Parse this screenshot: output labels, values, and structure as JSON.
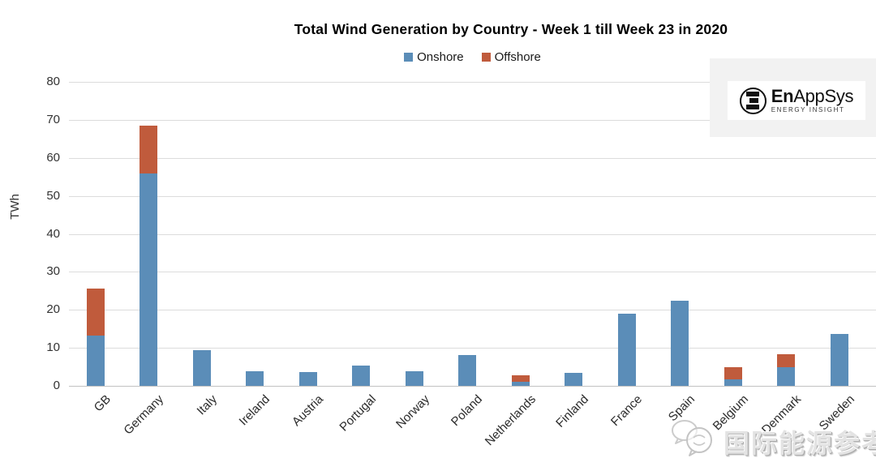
{
  "chart_data": {
    "type": "bar",
    "stacked": true,
    "title": "Total Wind Generation by Country - Week 1 till Week 23 in 2020",
    "ylabel": "TWh",
    "ylim": [
      0,
      80
    ],
    "ytick_interval": 10,
    "grid": true,
    "legend_position": "top",
    "categories": [
      "GB",
      "Germany",
      "Italy",
      "Ireland",
      "Austria",
      "Portugal",
      "Norway",
      "Poland",
      "Netherlands",
      "Finland",
      "France",
      "Spain",
      "Belgium",
      "Denmark",
      "Sweden"
    ],
    "series": [
      {
        "name": "Onshore",
        "color": "#5B8DB8",
        "values": [
          13.2,
          55.8,
          9.3,
          3.8,
          3.7,
          5.3,
          3.9,
          8.2,
          1.1,
          3.4,
          19.0,
          22.3,
          1.7,
          5.0,
          13.6
        ]
      },
      {
        "name": "Offshore",
        "color": "#C05B3C",
        "values": [
          12.5,
          12.7,
          0,
          0,
          0,
          0,
          0,
          0,
          1.6,
          0,
          0,
          0,
          3.3,
          3.4,
          0
        ]
      }
    ]
  },
  "legend": {
    "onshore_label": "Onshore",
    "offshore_label": "Offshore"
  },
  "logo": {
    "brand_bold": "En",
    "brand_rest": "AppSys",
    "tagline": "ENERGY INSIGHT"
  },
  "watermark": {
    "text": "国际能源参考"
  },
  "colors": {
    "onshore": "#5B8DB8",
    "offshore": "#C05B3C",
    "gridline": "#dcdcdc"
  }
}
